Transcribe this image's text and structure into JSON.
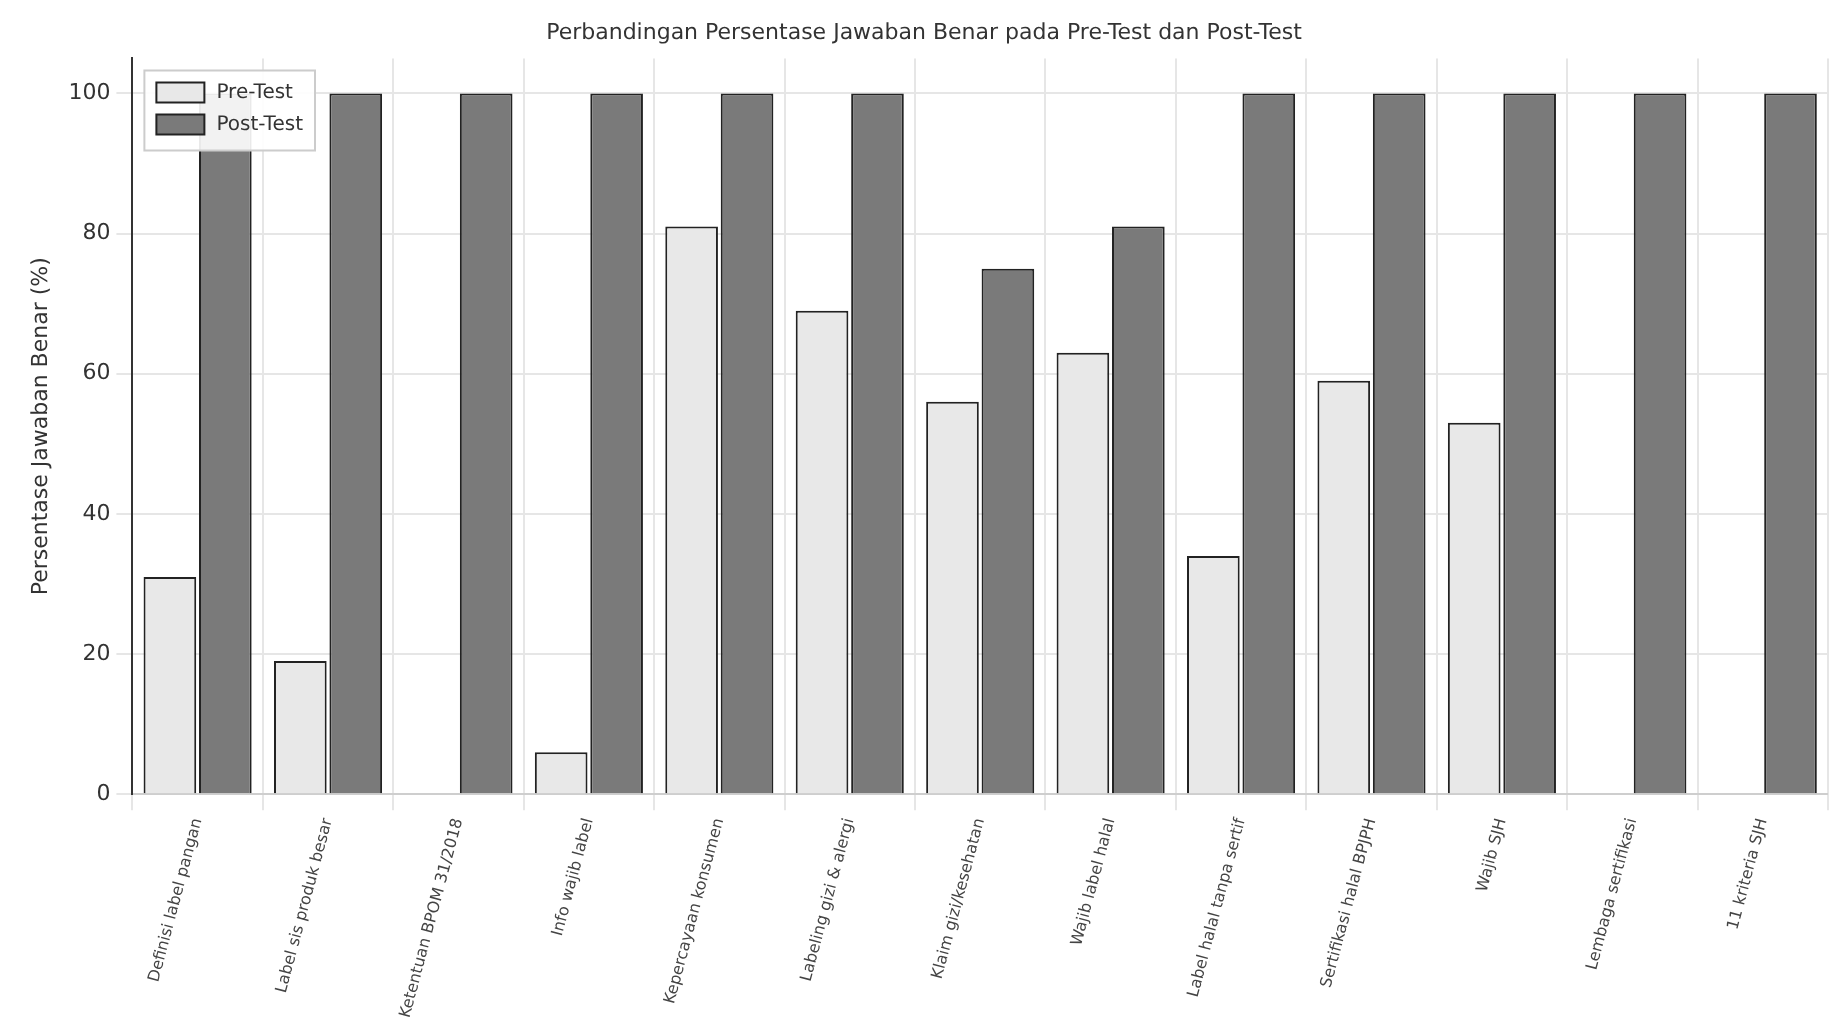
{
  "chart_data": {
    "type": "bar",
    "title": "Perbandingan Persentase Jawaban Benar pada Pre-Test dan Post-Test",
    "ylabel": "Persentase Jawaban Benar (%)",
    "categories": [
      "Definisi label pangan",
      "Label sis produk besar",
      "Ketentuan BPOM 31/2018",
      "Info wajib label",
      "Kepercayaan konsumen",
      "Labeling gizi & alergi",
      "Klaim gizi/kesehatan",
      "Wajib label halal",
      "Label halal tanpa sertif",
      "Sertifikasi halal BPJPH",
      "Wajib SJH",
      "Lembaga sertifikasi",
      "11 kriteria SJH"
    ],
    "series": [
      {
        "name": "Pre-Test",
        "color": "#e8e8e8",
        "values": [
          31,
          19,
          0,
          6,
          81,
          69,
          56,
          63,
          34,
          59,
          53,
          0,
          0
        ]
      },
      {
        "name": "Post-Test",
        "color": "#7a7a7a",
        "values": [
          100,
          100,
          100,
          100,
          100,
          100,
          75,
          81,
          100,
          100,
          100,
          100,
          100
        ]
      }
    ],
    "ylim": [
      0,
      105
    ],
    "yticks": [
      0,
      20,
      40,
      60,
      80,
      100
    ],
    "grid": true,
    "legend": "top left"
  }
}
